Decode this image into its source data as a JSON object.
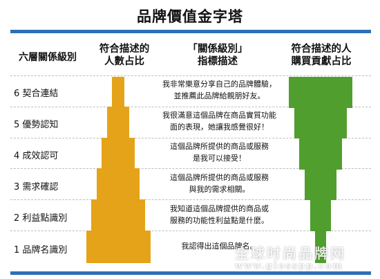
{
  "title": "品牌價值金字塔",
  "headers": {
    "levels": "六層關係級別",
    "orange_line1": "符合描述的",
    "orange_line2": "人數占比",
    "mid_line1": "「關係級別」",
    "mid_line2": "指標描述",
    "green_line1": "符合描述的人",
    "green_line2": "購買貢獻占比"
  },
  "rows": [
    {
      "level": "6  契合連結",
      "desc1": "我非常樂意分享自己的品牌體驗，",
      "desc2": "並推薦此品牌給親朋好友。"
    },
    {
      "level": "5  優勢認知",
      "desc1": "我很滿意這個品牌在商品實質功能",
      "desc2": "面的表現，她讓我感覺很好！"
    },
    {
      "level": "4  成效認可",
      "desc1": "這個品牌所提供的商品或服務",
      "desc2": "是我可以接受！"
    },
    {
      "level": "3  需求確認",
      "desc1": "這個品牌所提供的商品或服務",
      "desc2": "與我的需求相關。"
    },
    {
      "level": "2  利益點識別",
      "desc1": "我知道這個品牌提供的商品或",
      "desc2": "服務的功能性利益點是什麼。"
    },
    {
      "level": "1  品牌名識別",
      "desc1": "我認得出這個品牌名。",
      "desc2": ""
    }
  ],
  "colors": {
    "orange": "#e5a319",
    "green": "#4f9e2e",
    "accent": "#2f6fb5"
  },
  "watermark": {
    "line1": "全球时尚品牌网",
    "line2": "www.glosspp.com"
  }
}
